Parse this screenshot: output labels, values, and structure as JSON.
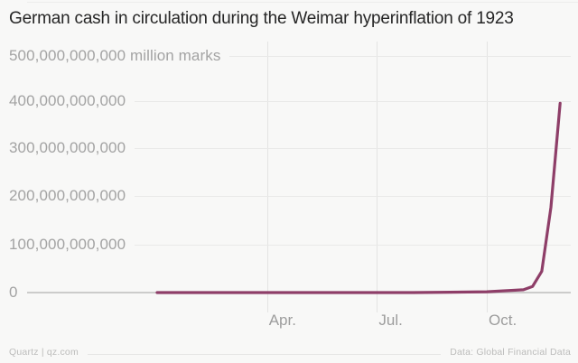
{
  "chart": {
    "title": "German cash in circulation during the Weimar hyperinflation of 1923",
    "footer_left": "Quartz | qz.com",
    "footer_right": "Data: Global Financial Data"
  },
  "chart_data": {
    "type": "line",
    "title": "German cash in circulation during the Weimar hyperinflation of 1923",
    "unit_label": "million marks",
    "ylim": [
      0,
      500000000000
    ],
    "y_ticks": [
      0,
      100000000000,
      200000000000,
      300000000000,
      400000000000,
      500000000000
    ],
    "y_tick_labels": [
      "0",
      "100,000,000,000",
      "200,000,000,000",
      "300,000,000,000",
      "400,000,000,000",
      "500,000,000,000 million marks"
    ],
    "x_axis": {
      "start": "Jan 1923",
      "end": "Dec 1923",
      "tick_labels": [
        "Apr.",
        "Jul.",
        "Oct."
      ],
      "tick_month_index": [
        3,
        6,
        9
      ]
    },
    "grid": true,
    "legend": "none",
    "series": [
      {
        "name": "Cash in circulation",
        "unit": "million marks",
        "color": "#8e3e68",
        "points": [
          {
            "date": "Jan 1923",
            "m": 0,
            "value": 1300000
          },
          {
            "date": "Feb 1923",
            "m": 1,
            "value": 2000000
          },
          {
            "date": "Mar 1923",
            "m": 2,
            "value": 3500000
          },
          {
            "date": "Apr 1923",
            "m": 3,
            "value": 5500000
          },
          {
            "date": "May 1923",
            "m": 4,
            "value": 6500000
          },
          {
            "date": "Jun 1923",
            "m": 5,
            "value": 8600000
          },
          {
            "date": "Jul 1923",
            "m": 6,
            "value": 17000000
          },
          {
            "date": "Aug 1923",
            "m": 7,
            "value": 44000000
          },
          {
            "date": "Sep 1923",
            "m": 8,
            "value": 670000000
          },
          {
            "date": "Oct 1923",
            "m": 9,
            "value": 1800000000
          },
          {
            "date": "Nov 1 1923",
            "m": 10,
            "value": 6000000000
          },
          {
            "date": "Nov 8 1923",
            "m": 10.25,
            "value": 13000000000
          },
          {
            "date": "Nov 16 1923",
            "m": 10.5,
            "value": 45000000000
          },
          {
            "date": "Nov 23 1923",
            "m": 10.75,
            "value": 180000000000
          },
          {
            "date": "Nov 30 1923",
            "m": 11,
            "value": 400000000000
          }
        ]
      }
    ]
  }
}
